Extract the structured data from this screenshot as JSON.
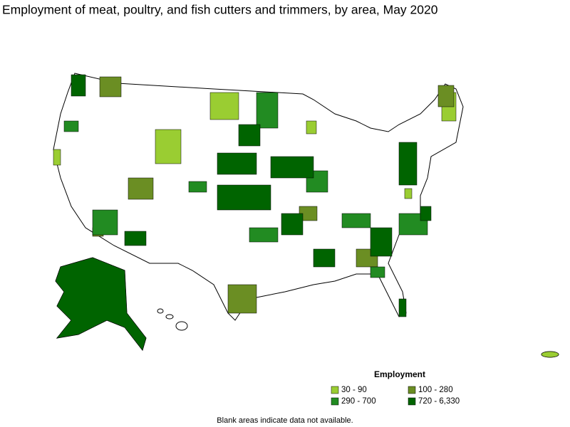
{
  "title": "Employment of meat, poultry, and fish cutters and trimmers, by area, May 2020",
  "legend": {
    "title": "Employment",
    "items": [
      {
        "label": "30 - 90",
        "color": "#9acd32"
      },
      {
        "label": "100 - 280",
        "color": "#6b8e23"
      },
      {
        "label": "290 - 700",
        "color": "#228b22"
      },
      {
        "label": "720 - 6,330",
        "color": "#006400"
      }
    ]
  },
  "note": "Blank areas indicate data not available."
}
